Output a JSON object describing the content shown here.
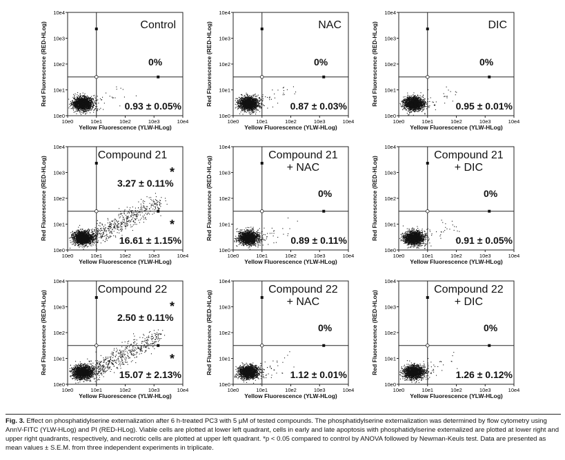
{
  "chart_data": [
    {
      "type": "scatter",
      "title": "Control",
      "title2": "",
      "ur": "0%",
      "lr": "0.93 ± 0.05%",
      "ur_star": false,
      "lr_star": false,
      "ylabel": "Red Fluorescence (RED-HLog)",
      "xlabel": "Yellow Fluorescence (YLW-HLog)",
      "xticks": [
        "10e0",
        "10e1",
        "10e2",
        "10e3",
        "10e4"
      ],
      "yticks": [
        "10e0",
        "10e1",
        "10e2",
        "10e3",
        "10e4"
      ],
      "xlim": [
        1,
        10000
      ],
      "ylim": [
        1,
        10000
      ],
      "scale": "log"
    },
    {
      "type": "scatter",
      "title": "NAC",
      "title2": "",
      "ur": "0%",
      "lr": "0.87 ± 0.03%",
      "ur_star": false,
      "lr_star": false,
      "ylabel": "Red Fluorescence (RED-HLog)",
      "xlabel": "Yellow Fluorescence (YLW-HLog)",
      "xticks": [
        "10e0",
        "10e1",
        "10e2",
        "10e3",
        "10e4"
      ],
      "yticks": [
        "10e0",
        "10e1",
        "10e2",
        "10e3",
        "10e4"
      ],
      "xlim": [
        1,
        10000
      ],
      "ylim": [
        1,
        10000
      ],
      "scale": "log"
    },
    {
      "type": "scatter",
      "title": "DIC",
      "title2": "",
      "ur": "0%",
      "lr": "0.95 ± 0.01%",
      "ur_star": false,
      "lr_star": false,
      "ylabel": "Red Fluorescence (RED-HLog)",
      "xlabel": "Yellow Fluorescence (YLW-HLog)",
      "xticks": [
        "10e0",
        "10e1",
        "10e2",
        "10e3",
        "10e4"
      ],
      "yticks": [
        "10e0",
        "10e1",
        "10e2",
        "10e3",
        "10e4"
      ],
      "xlim": [
        1,
        10000
      ],
      "ylim": [
        1,
        10000
      ],
      "scale": "log"
    },
    {
      "type": "scatter",
      "title": "Compound 21",
      "title2": "",
      "ur": "3.27 ± 0.11%",
      "lr": "16.61 ± 1.15%",
      "ur_star": true,
      "lr_star": true,
      "ylabel": "Red Fluorescence (RED-HLog)",
      "xlabel": "Yellow Fluorescence (YLW-HLog)",
      "xticks": [
        "10e0",
        "10e1",
        "10e2",
        "10e3",
        "10e4"
      ],
      "yticks": [
        "10e0",
        "10e1",
        "10e2",
        "10e3",
        "10e4"
      ],
      "xlim": [
        1,
        10000
      ],
      "ylim": [
        1,
        10000
      ],
      "scale": "log"
    },
    {
      "type": "scatter",
      "title": "Compound 21",
      "title2": "+ NAC",
      "ur": "0%",
      "lr": "0.89 ± 0.11%",
      "ur_star": false,
      "lr_star": false,
      "ylabel": "Red Fluorescence (RED-HLog)",
      "xlabel": "Yellow Fluorescence (YLW-HLog)",
      "xticks": [
        "10e0",
        "10e1",
        "10e2",
        "10e3",
        "10e4"
      ],
      "yticks": [
        "10e0",
        "10e1",
        "10e2",
        "10e3",
        "10e4"
      ],
      "xlim": [
        1,
        10000
      ],
      "ylim": [
        1,
        10000
      ],
      "scale": "log"
    },
    {
      "type": "scatter",
      "title": "Compound 21",
      "title2": "+ DIC",
      "ur": "0%",
      "lr": "0.91 ± 0.05%",
      "ur_star": false,
      "lr_star": false,
      "ylabel": "Red Fluorescence (RED-HLog)",
      "xlabel": "Yellow Fluorescence (YLW-HLog)",
      "xticks": [
        "10e0",
        "10e1",
        "10e2",
        "10e3",
        "10e4"
      ],
      "yticks": [
        "10e0",
        "10e1",
        "10e2",
        "10e3",
        "10e4"
      ],
      "xlim": [
        1,
        10000
      ],
      "ylim": [
        1,
        10000
      ],
      "scale": "log"
    },
    {
      "type": "scatter",
      "title": "Compound 22",
      "title2": "",
      "ur": "2.50 ± 0.11%",
      "lr": "15.07 ± 2.13%",
      "ur_star": true,
      "lr_star": true,
      "ylabel": "Red Fluorescence (RED-HLog)",
      "xlabel": "Yellow Fluorescence (YLW-HLog)",
      "xticks": [
        "10e0",
        "10e1",
        "10e2",
        "10e3",
        "10e4"
      ],
      "yticks": [
        "10e0",
        "10e1",
        "10e2",
        "10e3",
        "10e4"
      ],
      "xlim": [
        1,
        10000
      ],
      "ylim": [
        1,
        10000
      ],
      "scale": "log"
    },
    {
      "type": "scatter",
      "title": "Compound 22",
      "title2": "+ NAC",
      "ur": "0%",
      "lr": "1.12 ± 0.01%",
      "ur_star": false,
      "lr_star": false,
      "ylabel": "Red Fluorescence (RED-HLog)",
      "xlabel": "Yellow Fluorescence (YLW-HLog)",
      "xticks": [
        "10e0",
        "10e1",
        "10e2",
        "10e3",
        "10e4"
      ],
      "yticks": [
        "10e0",
        "10e1",
        "10e2",
        "10e3",
        "10e4"
      ],
      "xlim": [
        1,
        10000
      ],
      "ylim": [
        1,
        10000
      ],
      "scale": "log"
    },
    {
      "type": "scatter",
      "title": "Compound 22",
      "title2": "+ DIC",
      "ur": "0%",
      "lr": "1.26 ± 0.12%",
      "ur_star": false,
      "lr_star": false,
      "ylabel": "Red Fluorescence (RED-HLog)",
      "xlabel": "Yellow Fluorescence (YLW-HLog)",
      "xticks": [
        "10e0",
        "10e1",
        "10e2",
        "10e3",
        "10e4"
      ],
      "yticks": [
        "10e0",
        "10e1",
        "10e2",
        "10e3",
        "10e4"
      ],
      "xlim": [
        1,
        10000
      ],
      "ylim": [
        1,
        10000
      ],
      "scale": "log"
    }
  ],
  "star_symbol": "*",
  "caption": {
    "label": "Fig. 3.",
    "text": "Effect on phosphatidylserine externalization after 6 h-treated PC3 with 5 µM of tested compounds. The phosphatidylserine externalization was determined by flow cytometry using AnnV-FITC (YLW-HLog) and PI (RED-HLog). Viable cells are plotted at lower left quadrant, cells in early and late apoptosis with phosphatidylserine externalized are plotted at lower right and upper right quadrants, respectively, and necrotic cells are plotted at upper left quadrant. *p < 0.05 compared to control by ANOVA followed by Newman-Keuls test. Data are presented as mean values ± S.E.M. from three independent experiments in triplicate."
  }
}
